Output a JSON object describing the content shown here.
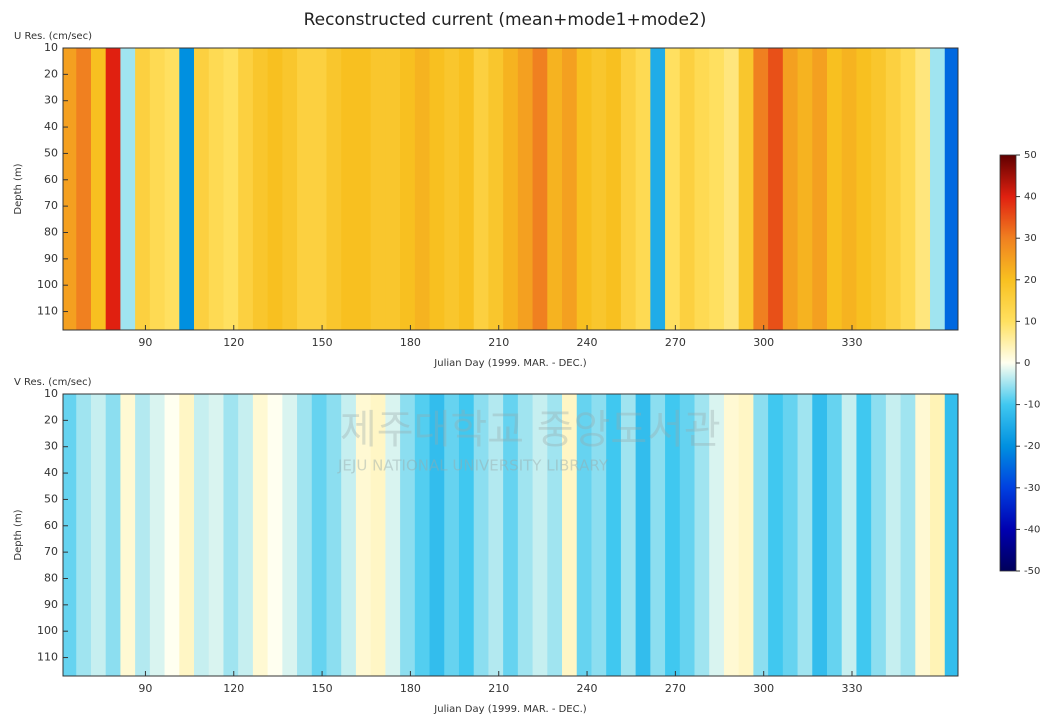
{
  "title": "Reconstructed current (mean+mode1+mode2)",
  "watermark": {
    "name": "제주대학교 중앙도서관",
    "name_en": "JEJU NATIONAL UNIVERSITY LIBRARY"
  },
  "chart_data": [
    {
      "type": "heatmap",
      "label": "U Res. (cm/sec)",
      "xlabel": "Julian Day (1999. MAR. - DEC.)",
      "ylabel": "Depth (m)",
      "x": [
        64,
        69,
        74,
        79,
        84,
        89,
        94,
        99,
        104,
        109,
        114,
        119,
        124,
        129,
        134,
        139,
        144,
        149,
        154,
        159,
        164,
        169,
        174,
        179,
        184,
        189,
        194,
        199,
        204,
        209,
        214,
        219,
        224,
        229,
        234,
        239,
        244,
        249,
        254,
        259,
        264,
        269,
        274,
        279,
        284,
        289,
        294,
        299,
        304,
        309,
        314,
        319,
        324,
        329,
        334,
        339,
        344,
        349,
        354,
        359,
        364
      ],
      "values": [
        25,
        30,
        20,
        40,
        -5,
        15,
        12,
        10,
        -20,
        15,
        12,
        10,
        15,
        18,
        20,
        18,
        15,
        15,
        18,
        20,
        20,
        18,
        18,
        20,
        22,
        20,
        18,
        20,
        15,
        18,
        22,
        25,
        30,
        22,
        25,
        20,
        18,
        20,
        15,
        12,
        -15,
        10,
        15,
        12,
        10,
        8,
        18,
        30,
        35,
        25,
        22,
        25,
        20,
        22,
        20,
        18,
        15,
        12,
        8,
        -5,
        -25
      ],
      "xlim": [
        62,
        366
      ],
      "xticks": [
        90,
        120,
        150,
        180,
        210,
        240,
        270,
        300,
        330
      ],
      "ylim": [
        10,
        117
      ],
      "yticks": [
        10,
        20,
        30,
        40,
        50,
        60,
        70,
        80,
        90,
        100,
        110
      ]
    },
    {
      "type": "heatmap",
      "label": "V Res. (cm/sec)",
      "xlabel": "Julian Day (1999. MAR. - DEC.)",
      "ylabel": "Depth (m)",
      "x": [
        64,
        69,
        74,
        79,
        84,
        89,
        94,
        99,
        104,
        109,
        114,
        119,
        124,
        129,
        134,
        139,
        144,
        149,
        154,
        159,
        164,
        169,
        174,
        179,
        184,
        189,
        194,
        199,
        204,
        209,
        214,
        219,
        224,
        229,
        234,
        239,
        244,
        249,
        254,
        259,
        264,
        269,
        274,
        279,
        284,
        289,
        294,
        299,
        304,
        309,
        314,
        319,
        324,
        329,
        334,
        339,
        344,
        349,
        354,
        359,
        364
      ],
      "values": [
        -8,
        -5,
        -3,
        -6,
        2,
        -4,
        -2,
        0,
        3,
        -3,
        -2,
        -5,
        -3,
        2,
        0,
        -2,
        -5,
        -8,
        -6,
        -3,
        2,
        3,
        -2,
        -6,
        -9,
        -12,
        -8,
        -10,
        -6,
        -4,
        -8,
        -5,
        -3,
        -5,
        3,
        -8,
        -6,
        -10,
        -5,
        -12,
        -6,
        -10,
        -8,
        -5,
        -2,
        2,
        3,
        -6,
        -10,
        -8,
        -5,
        -12,
        -8,
        -3,
        -10,
        -6,
        -3,
        -5,
        2,
        4,
        -12
      ],
      "xlim": [
        62,
        366
      ],
      "xticks": [
        90,
        120,
        150,
        180,
        210,
        240,
        270,
        300,
        330
      ],
      "ylim": [
        10,
        117
      ],
      "yticks": [
        10,
        20,
        30,
        40,
        50,
        60,
        70,
        80,
        90,
        100,
        110
      ]
    }
  ],
  "colorbar": {
    "lim": [
      -50,
      50
    ],
    "ticks": [
      -50,
      -40,
      -30,
      -20,
      -10,
      0,
      10,
      20,
      30,
      40,
      50
    ]
  }
}
